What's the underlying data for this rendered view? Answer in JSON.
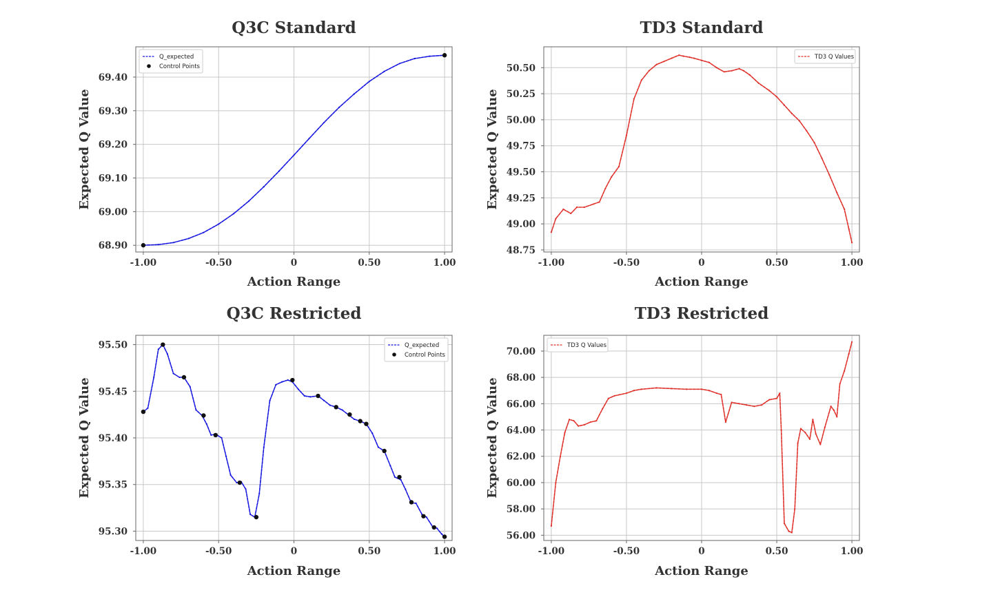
{
  "chart_data": [
    {
      "type": "line",
      "title": "Q3C Standard",
      "xlabel": "Action Range",
      "ylabel": "Expected Q Value",
      "xlim": [
        -1.05,
        1.05
      ],
      "ylim": [
        68.88,
        69.49
      ],
      "xticks": [
        -1,
        -0.5,
        0,
        0.5,
        1
      ],
      "xtick_labels": [
        "-1.00",
        "-0.50",
        "0",
        "0.50",
        "1.00"
      ],
      "yticks": [
        68.9,
        69.0,
        69.1,
        69.2,
        69.3,
        69.4
      ],
      "ytick_labels": [
        "68.90",
        "69.00",
        "69.10",
        "69.20",
        "69.30",
        "69.40"
      ],
      "legend": {
        "position": "top-left",
        "entries": [
          "Q_expected",
          "Control Points"
        ]
      },
      "series": [
        {
          "name": "Q_expected",
          "color": "#1515e0",
          "style": "dashed",
          "x": [
            -1.0,
            -0.9,
            -0.8,
            -0.7,
            -0.6,
            -0.5,
            -0.4,
            -0.3,
            -0.2,
            -0.1,
            0.0,
            0.1,
            0.2,
            0.3,
            0.4,
            0.5,
            0.6,
            0.7,
            0.8,
            0.9,
            1.0
          ],
          "y": [
            68.9,
            68.902,
            68.908,
            68.92,
            68.938,
            68.963,
            68.994,
            69.031,
            69.074,
            69.12,
            69.168,
            69.217,
            69.265,
            69.31,
            69.35,
            69.387,
            69.417,
            69.44,
            69.455,
            69.462,
            69.465
          ]
        }
      ],
      "control_points": {
        "name": "Control Points",
        "color": "#111111",
        "x": [
          -1.0,
          1.0
        ],
        "y": [
          68.9,
          69.465
        ]
      }
    },
    {
      "type": "line",
      "title": "TD3 Standard",
      "xlabel": "Action Range",
      "ylabel": "Expected Q Value",
      "xlim": [
        -1.05,
        1.05
      ],
      "ylim": [
        48.73,
        50.7
      ],
      "xticks": [
        -1,
        -0.5,
        0,
        0.5,
        1
      ],
      "xtick_labels": [
        "-1.00",
        "-0.50",
        "0",
        "0.50",
        "1.00"
      ],
      "yticks": [
        48.75,
        49.0,
        49.25,
        49.5,
        49.75,
        50.0,
        50.25,
        50.5
      ],
      "ytick_labels": [
        "48.75",
        "49.00",
        "49.25",
        "49.50",
        "49.75",
        "50.00",
        "50.25",
        "50.50"
      ],
      "legend": {
        "position": "top-right",
        "entries": [
          "TD3 Q Values"
        ]
      },
      "series": [
        {
          "name": "TD3 Q Values",
          "color": "#e0302a",
          "style": "dashed",
          "x": [
            -1.0,
            -0.97,
            -0.92,
            -0.87,
            -0.83,
            -0.78,
            -0.72,
            -0.68,
            -0.64,
            -0.6,
            -0.55,
            -0.5,
            -0.45,
            -0.4,
            -0.35,
            -0.3,
            -0.25,
            -0.2,
            -0.15,
            -0.12,
            -0.08,
            -0.05,
            0.0,
            0.05,
            0.1,
            0.15,
            0.2,
            0.25,
            0.28,
            0.32,
            0.38,
            0.45,
            0.5,
            0.55,
            0.6,
            0.65,
            0.7,
            0.75,
            0.8,
            0.85,
            0.9,
            0.95,
            0.98,
            1.0
          ],
          "y": [
            48.92,
            49.05,
            49.14,
            49.1,
            49.16,
            49.16,
            49.19,
            49.21,
            49.34,
            49.45,
            49.55,
            49.85,
            50.2,
            50.38,
            50.47,
            50.53,
            50.56,
            50.59,
            50.62,
            50.61,
            50.6,
            50.59,
            50.57,
            50.55,
            50.5,
            50.46,
            50.47,
            50.49,
            50.47,
            50.43,
            50.35,
            50.28,
            50.22,
            50.14,
            50.06,
            49.99,
            49.89,
            49.78,
            49.63,
            49.47,
            49.3,
            49.14,
            48.95,
            48.82
          ]
        }
      ]
    },
    {
      "type": "line",
      "title": "Q3C Restricted",
      "xlabel": "Action Range",
      "ylabel": "Expected Q Value",
      "xlim": [
        -1.05,
        1.05
      ],
      "ylim": [
        95.29,
        95.51
      ],
      "xticks": [
        -1,
        -0.5,
        0,
        0.5,
        1
      ],
      "xtick_labels": [
        "-1.00",
        "-0.50",
        "0",
        "0.50",
        "1.00"
      ],
      "yticks": [
        95.3,
        95.35,
        95.4,
        95.45,
        95.5
      ],
      "ytick_labels": [
        "95.30",
        "95.35",
        "95.40",
        "95.45",
        "95.50"
      ],
      "legend": {
        "position": "top-right",
        "entries": [
          "Q_expected",
          "Control Points"
        ]
      },
      "series": [
        {
          "name": "Q_expected",
          "color": "#1515e0",
          "style": "dashed",
          "x": [
            -1.0,
            -0.97,
            -0.93,
            -0.9,
            -0.87,
            -0.84,
            -0.8,
            -0.76,
            -0.73,
            -0.69,
            -0.65,
            -0.61,
            -0.58,
            -0.55,
            -0.52,
            -0.48,
            -0.45,
            -0.42,
            -0.38,
            -0.35,
            -0.32,
            -0.29,
            -0.26,
            -0.23,
            -0.2,
            -0.16,
            -0.12,
            -0.08,
            -0.04,
            -0.01,
            0.03,
            0.07,
            0.11,
            0.16,
            0.2,
            0.24,
            0.28,
            0.32,
            0.36,
            0.4,
            0.44,
            0.48,
            0.52,
            0.56,
            0.6,
            0.64,
            0.67,
            0.71,
            0.74,
            0.78,
            0.81,
            0.85,
            0.88,
            0.92,
            0.95,
            0.98,
            1.0
          ],
          "y": [
            95.428,
            95.432,
            95.465,
            95.495,
            95.5,
            95.49,
            95.469,
            95.465,
            95.465,
            95.455,
            95.43,
            95.424,
            95.415,
            95.403,
            95.404,
            95.4,
            95.38,
            95.36,
            95.352,
            95.353,
            95.345,
            95.318,
            95.315,
            95.34,
            95.39,
            95.44,
            95.457,
            95.46,
            95.462,
            95.46,
            95.452,
            95.445,
            95.444,
            95.445,
            95.44,
            95.435,
            95.433,
            95.43,
            95.425,
            95.42,
            95.418,
            95.415,
            95.405,
            95.39,
            95.386,
            95.37,
            95.358,
            95.355,
            95.345,
            95.33,
            95.33,
            95.318,
            95.315,
            95.305,
            95.303,
            95.297,
            95.294
          ]
        }
      ],
      "control_points": {
        "name": "Control Points",
        "color": "#111111",
        "x": [
          -1.0,
          -0.87,
          -0.73,
          -0.6,
          -0.52,
          -0.36,
          -0.25,
          -0.01,
          0.16,
          0.28,
          0.37,
          0.44,
          0.48,
          0.6,
          0.7,
          0.78,
          0.86,
          0.93,
          1.0
        ],
        "y": [
          95.428,
          95.5,
          95.465,
          95.424,
          95.403,
          95.352,
          95.315,
          95.462,
          95.445,
          95.433,
          95.425,
          95.418,
          95.415,
          95.386,
          95.358,
          95.331,
          95.316,
          95.304,
          95.294
        ]
      }
    },
    {
      "type": "line",
      "title": "TD3 Restricted",
      "xlabel": "Action Range",
      "ylabel": "Expected Q Value",
      "xlim": [
        -1.05,
        1.05
      ],
      "ylim": [
        55.6,
        71.2
      ],
      "xticks": [
        -1,
        -0.5,
        0,
        0.5,
        1
      ],
      "xtick_labels": [
        "-1.00",
        "-0.50",
        "0",
        "0.50",
        "1.00"
      ],
      "yticks": [
        56,
        58,
        60,
        62,
        64,
        66,
        68,
        70
      ],
      "ytick_labels": [
        "56.00",
        "58.00",
        "60.00",
        "62.00",
        "64.00",
        "66.00",
        "68.00",
        "70.00"
      ],
      "legend": {
        "position": "top-left",
        "entries": [
          "TD3 Q Values"
        ]
      },
      "series": [
        {
          "name": "TD3 Q Values",
          "color": "#e0302a",
          "style": "dashed",
          "x": [
            -1.0,
            -0.97,
            -0.94,
            -0.91,
            -0.88,
            -0.85,
            -0.82,
            -0.78,
            -0.74,
            -0.7,
            -0.66,
            -0.62,
            -0.58,
            -0.5,
            -0.45,
            -0.4,
            -0.3,
            -0.2,
            -0.1,
            0.0,
            0.05,
            0.1,
            0.13,
            0.16,
            0.2,
            0.25,
            0.3,
            0.35,
            0.4,
            0.45,
            0.5,
            0.52,
            0.53,
            0.55,
            0.58,
            0.6,
            0.62,
            0.64,
            0.66,
            0.69,
            0.72,
            0.74,
            0.76,
            0.79,
            0.82,
            0.86,
            0.88,
            0.9,
            0.92,
            0.95,
            0.98,
            1.0
          ],
          "y": [
            56.7,
            60.0,
            62.0,
            63.8,
            64.8,
            64.7,
            64.3,
            64.4,
            64.6,
            64.7,
            65.6,
            66.4,
            66.6,
            66.8,
            67.0,
            67.1,
            67.2,
            67.15,
            67.1,
            67.1,
            67.0,
            66.8,
            66.7,
            64.6,
            66.1,
            66.0,
            65.9,
            65.8,
            65.9,
            66.3,
            66.4,
            66.8,
            64.0,
            56.9,
            56.3,
            56.2,
            58.0,
            63.0,
            64.1,
            63.8,
            63.3,
            64.8,
            63.7,
            62.9,
            64.2,
            65.8,
            65.5,
            65.0,
            67.5,
            68.5,
            69.8,
            70.7
          ]
        }
      ]
    }
  ]
}
